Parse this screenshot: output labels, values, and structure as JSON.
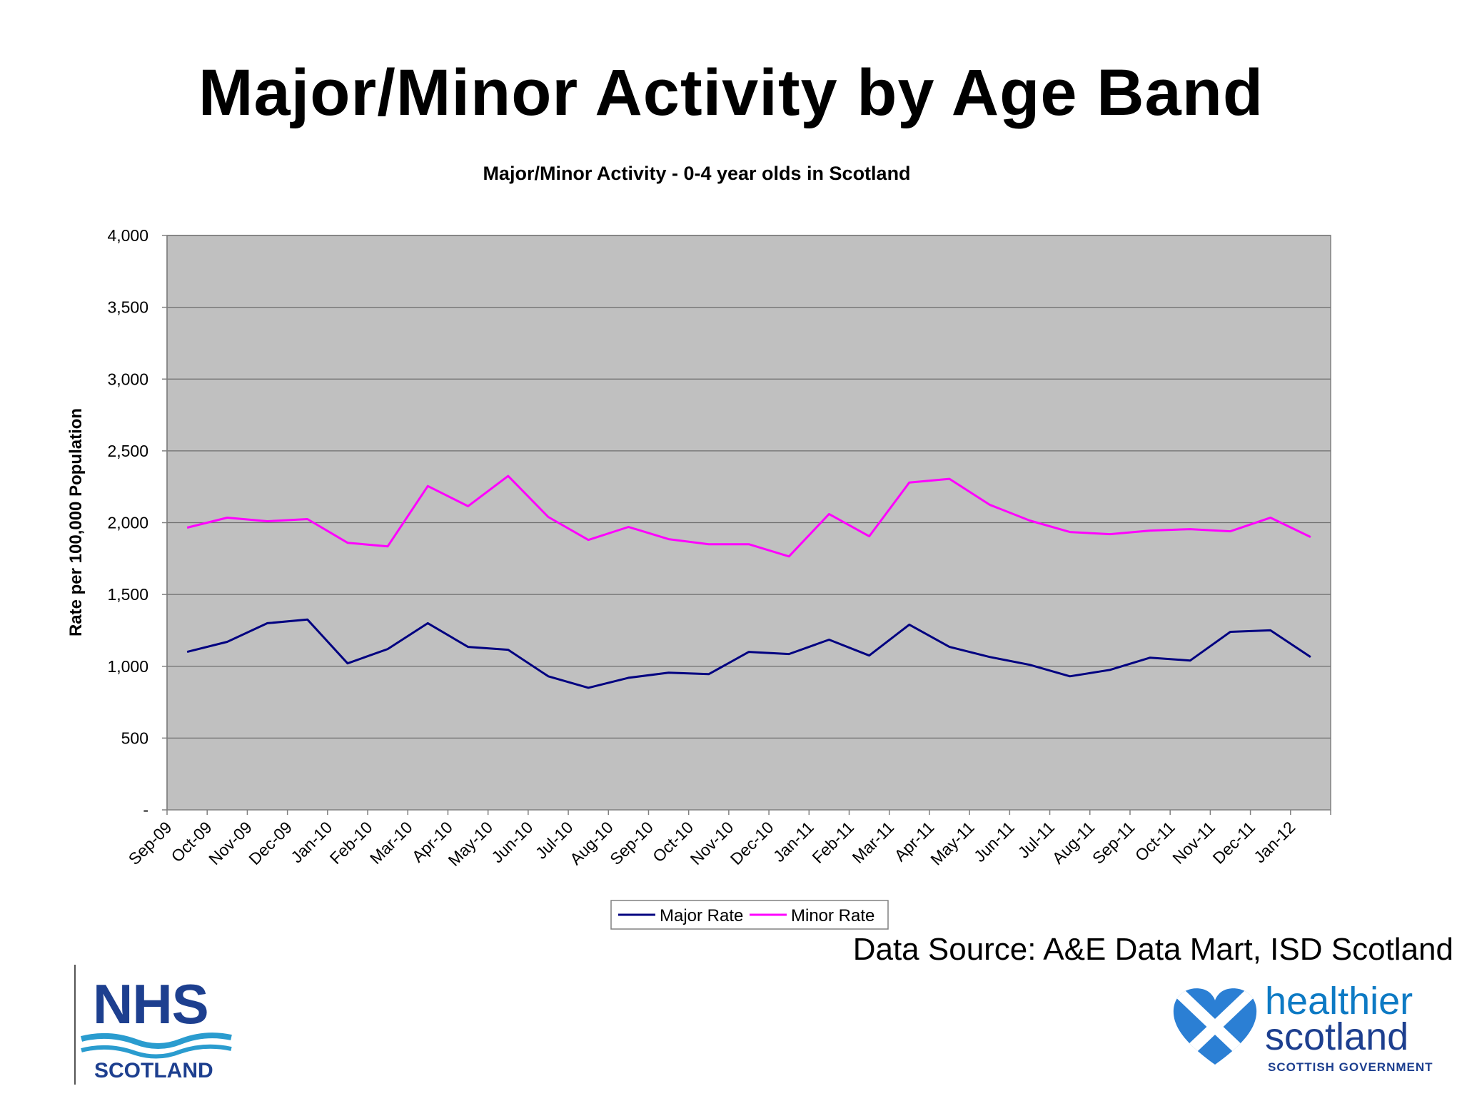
{
  "slide": {
    "title": "Major/Minor Activity by Age Band",
    "source": "Data Source:  A&E Data Mart, ISD Scotland"
  },
  "chart_data": {
    "type": "line",
    "title": "Major/Minor Activity - 0-4 year olds in Scotland",
    "xlabel": "",
    "ylabel": "Rate per 100,000 Population",
    "ylim": [
      0,
      4000
    ],
    "yticks": [
      0,
      500,
      1000,
      1500,
      2000,
      2500,
      3000,
      3500,
      4000
    ],
    "ytick_labels": [
      "-",
      "500",
      "1,000",
      "1,500",
      "2,000",
      "2,500",
      "3,000",
      "3,500",
      "4,000"
    ],
    "grid": true,
    "plot_background": "#c0c0c0",
    "legend_position": "bottom",
    "categories": [
      "Sep-09",
      "Oct-09",
      "Nov-09",
      "Dec-09",
      "Jan-10",
      "Feb-10",
      "Mar-10",
      "Apr-10",
      "May-10",
      "Jun-10",
      "Jul-10",
      "Aug-10",
      "Sep-10",
      "Oct-10",
      "Nov-10",
      "Dec-10",
      "Jan-11",
      "Feb-11",
      "Mar-11",
      "Apr-11",
      "May-11",
      "Jun-11",
      "Jul-11",
      "Aug-11",
      "Sep-11",
      "Oct-11",
      "Nov-11",
      "Dec-11",
      "Jan-12"
    ],
    "series": [
      {
        "name": "Major Rate",
        "color": "#000080",
        "values": [
          1100,
          1170,
          1300,
          1325,
          1020,
          1120,
          1300,
          1135,
          1115,
          930,
          850,
          920,
          955,
          945,
          1100,
          1085,
          1185,
          1075,
          1290,
          1135,
          1065,
          1010,
          930,
          975,
          1060,
          1040,
          1240,
          1250,
          1065
        ]
      },
      {
        "name": "Minor Rate",
        "color": "#ff00ff",
        "values": [
          1965,
          2035,
          2010,
          2025,
          1860,
          1835,
          2255,
          2115,
          2325,
          2040,
          1880,
          1970,
          1885,
          1850,
          1850,
          1765,
          2060,
          1905,
          2280,
          2305,
          2125,
          2015,
          1935,
          1920,
          1945,
          1955,
          1940,
          2035,
          1900
        ]
      }
    ]
  },
  "logos": {
    "nhs_word": "NHS",
    "nhs_sub": "SCOTLAND",
    "hs_line1": "healthier",
    "hs_line2": "scotland",
    "hs_gov": "SCOTTISH GOVERNMENT"
  }
}
